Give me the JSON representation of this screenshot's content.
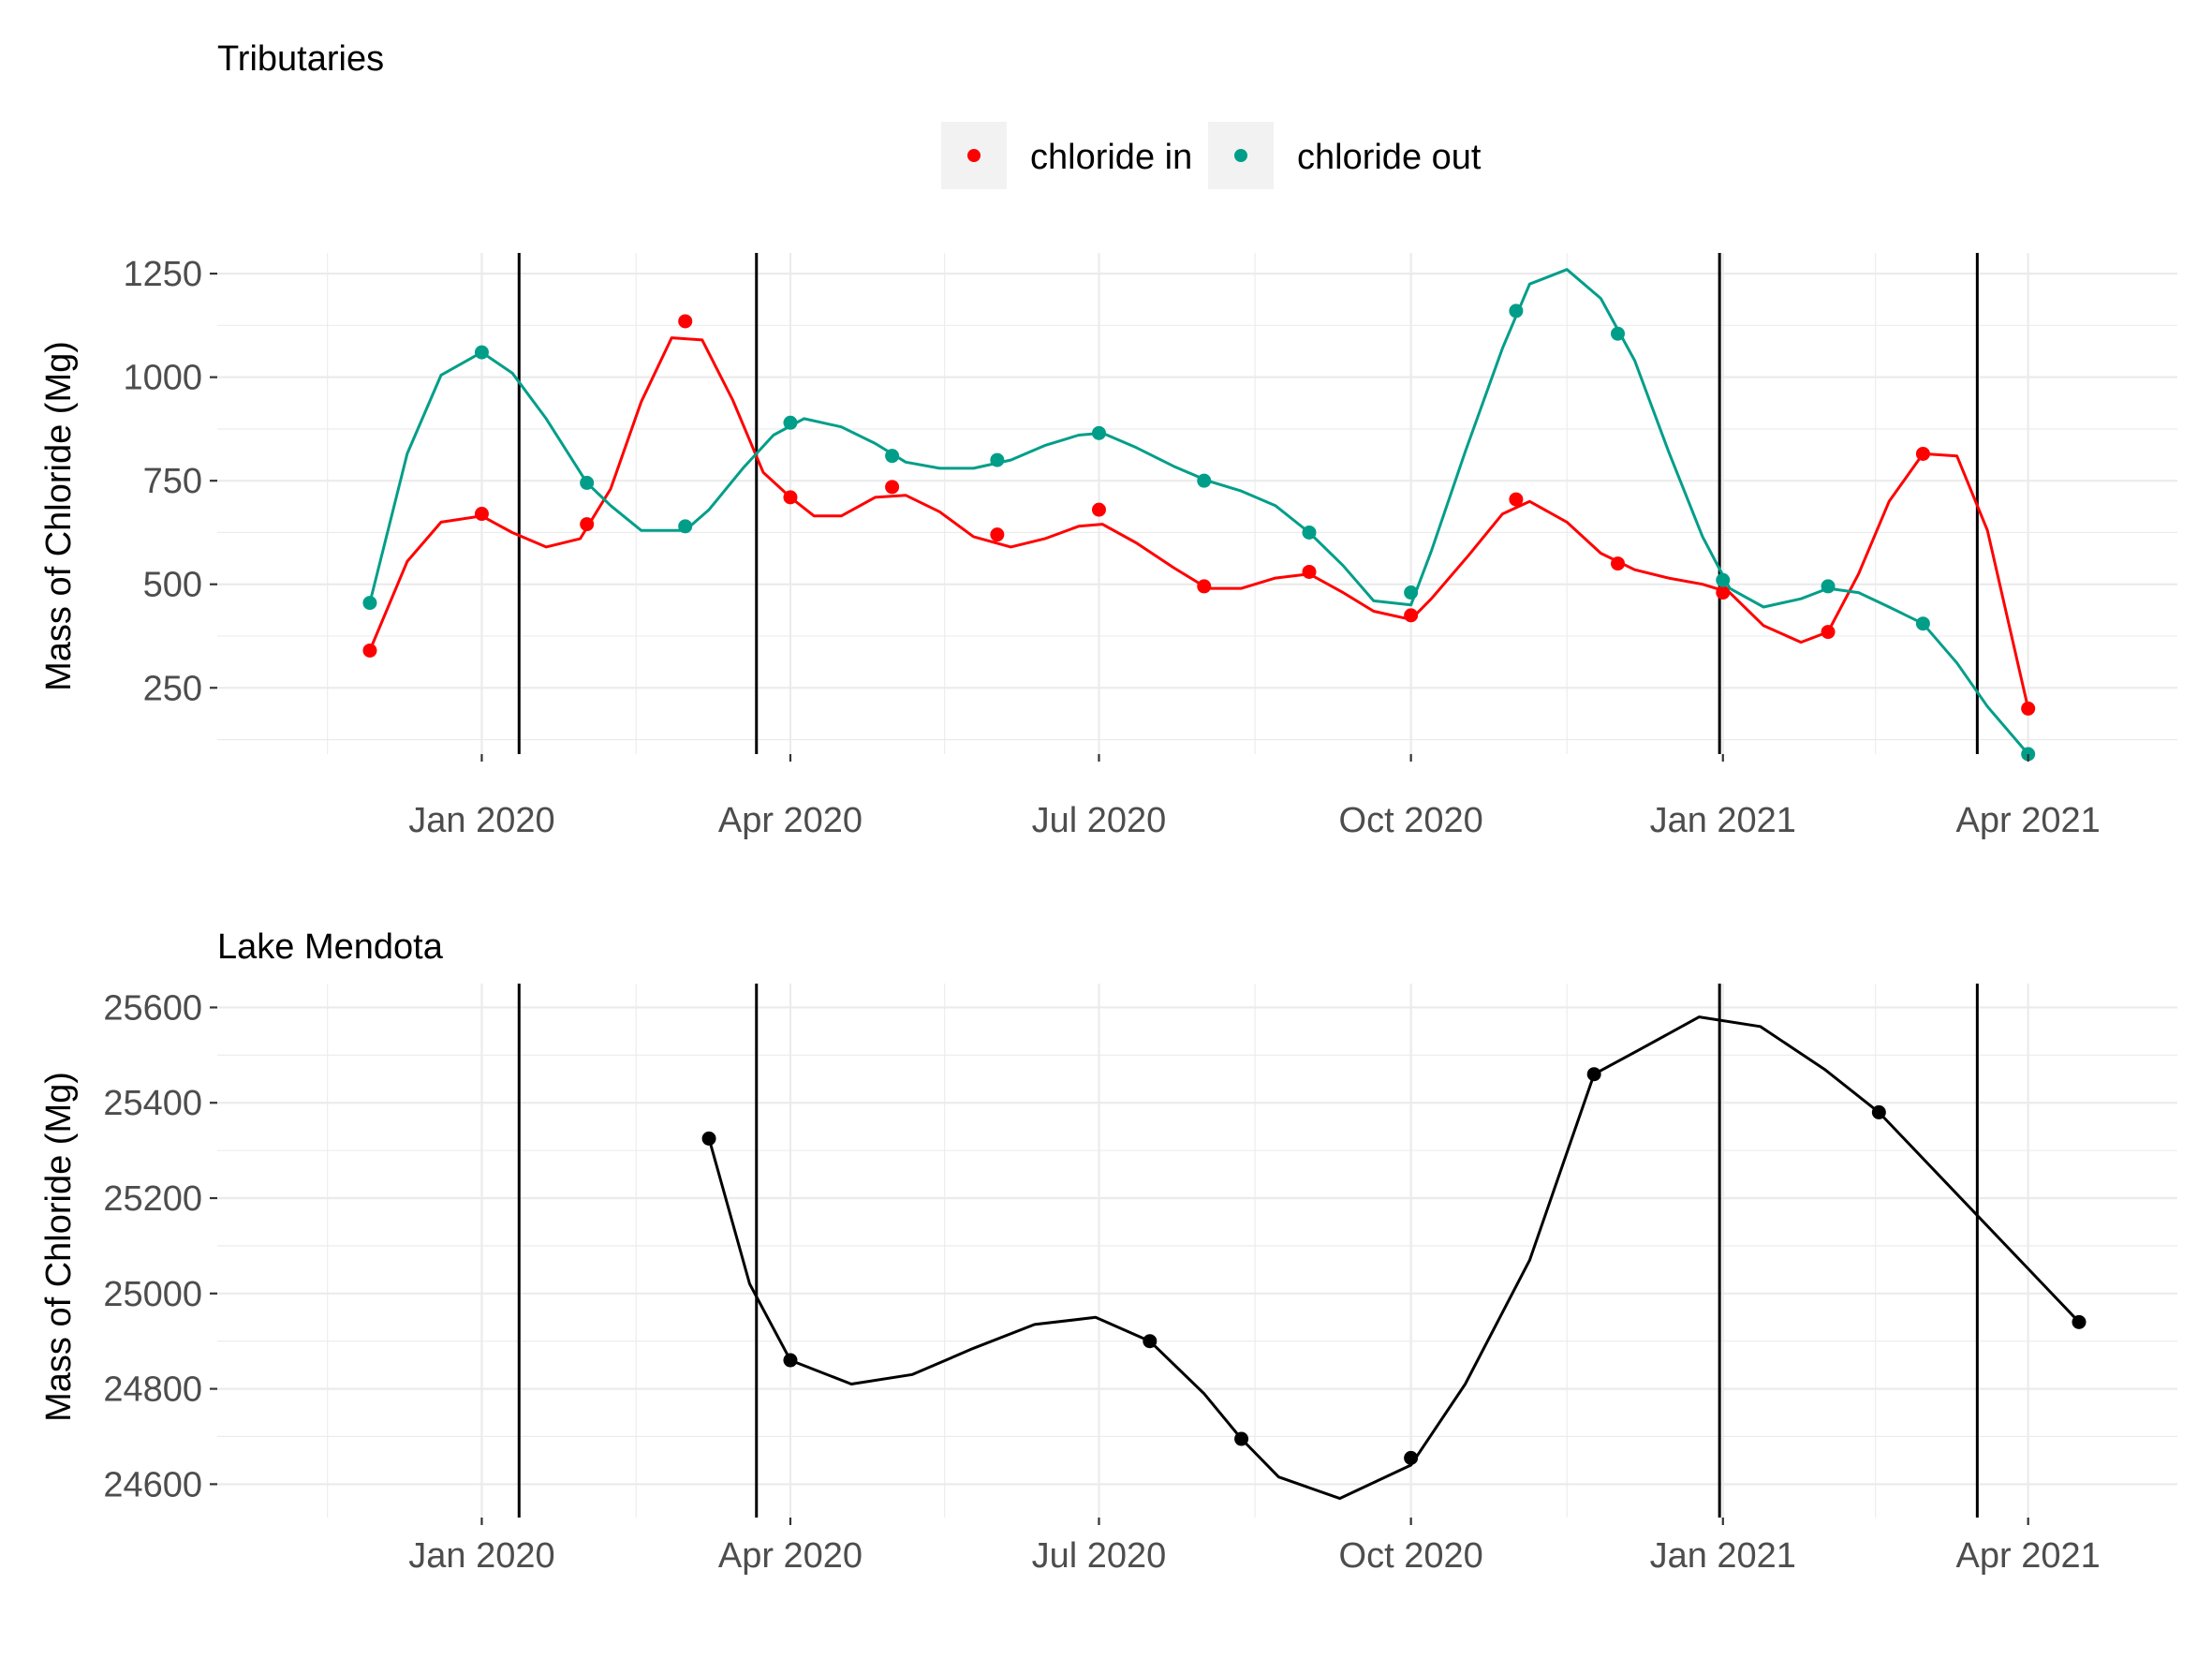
{
  "chart_data": [
    {
      "type": "line",
      "title": "Tributaries",
      "xlabel": "",
      "ylabel": "Mass of Chloride (Mg)",
      "xlim": [
        "2019-10-15",
        "2021-05-15"
      ],
      "ylim": [
        90,
        1300
      ],
      "x_ticks": [
        {
          "date": "2020-01-01",
          "label": "Jan 2020"
        },
        {
          "date": "2020-04-01",
          "label": "Apr 2020"
        },
        {
          "date": "2020-07-01",
          "label": "Jul 2020"
        },
        {
          "date": "2020-10-01",
          "label": "Oct 2020"
        },
        {
          "date": "2021-01-01",
          "label": "Jan 2021"
        },
        {
          "date": "2021-04-01",
          "label": "Apr 2021"
        }
      ],
      "y_ticks": [
        {
          "value": 250,
          "label": "250"
        },
        {
          "value": 500,
          "label": "500"
        },
        {
          "value": 750,
          "label": "750"
        },
        {
          "value": 1000,
          "label": "1000"
        },
        {
          "value": 1250,
          "label": "1250"
        }
      ],
      "vertical_lines": [
        "2020-01-12",
        "2020-03-22",
        "2020-12-31",
        "2021-03-17"
      ],
      "grid": true,
      "legend": {
        "position": "top",
        "entries": [
          "chloride in",
          "chloride out"
        ]
      },
      "series": [
        {
          "name": "chloride in",
          "color": "#ff0000",
          "points": [
            [
              "2019-11-29",
              340
            ],
            [
              "2020-01-01",
              670
            ],
            [
              "2020-02-01",
              645
            ],
            [
              "2020-03-01",
              1135
            ],
            [
              "2020-04-01",
              710
            ],
            [
              "2020-05-01",
              735
            ],
            [
              "2020-06-01",
              620
            ],
            [
              "2020-07-01",
              680
            ],
            [
              "2020-08-01",
              495
            ],
            [
              "2020-09-01",
              530
            ],
            [
              "2020-10-01",
              425
            ],
            [
              "2020-11-01",
              705
            ],
            [
              "2020-12-01",
              550
            ],
            [
              "2021-01-01",
              480
            ],
            [
              "2021-02-01",
              385
            ],
            [
              "2021-03-01",
              815
            ],
            [
              "2021-04-01",
              200
            ]
          ],
          "curve": [
            [
              "2019-11-29",
              340
            ],
            [
              "2019-12-10",
              555
            ],
            [
              "2019-12-20",
              650
            ],
            [
              "2020-01-01",
              665
            ],
            [
              "2020-01-10",
              625
            ],
            [
              "2020-01-20",
              590
            ],
            [
              "2020-01-30",
              610
            ],
            [
              "2020-02-08",
              730
            ],
            [
              "2020-02-17",
              940
            ],
            [
              "2020-02-26",
              1095
            ],
            [
              "2020-03-06",
              1090
            ],
            [
              "2020-03-15",
              945
            ],
            [
              "2020-03-24",
              770
            ],
            [
              "2020-04-01",
              710
            ],
            [
              "2020-04-08",
              665
            ],
            [
              "2020-04-16",
              665
            ],
            [
              "2020-04-26",
              710
            ],
            [
              "2020-05-05",
              715
            ],
            [
              "2020-05-15",
              675
            ],
            [
              "2020-05-25",
              615
            ],
            [
              "2020-06-05",
              590
            ],
            [
              "2020-06-15",
              610
            ],
            [
              "2020-06-25",
              640
            ],
            [
              "2020-07-02",
              645
            ],
            [
              "2020-07-12",
              600
            ],
            [
              "2020-07-23",
              540
            ],
            [
              "2020-08-02",
              490
            ],
            [
              "2020-08-12",
              490
            ],
            [
              "2020-08-22",
              515
            ],
            [
              "2020-09-01",
              525
            ],
            [
              "2020-09-11",
              480
            ],
            [
              "2020-09-20",
              435
            ],
            [
              "2020-10-01",
              415
            ],
            [
              "2020-10-07",
              465
            ],
            [
              "2020-10-18",
              570
            ],
            [
              "2020-10-28",
              670
            ],
            [
              "2020-11-05",
              700
            ],
            [
              "2020-11-16",
              650
            ],
            [
              "2020-11-26",
              575
            ],
            [
              "2020-12-06",
              535
            ],
            [
              "2020-12-16",
              515
            ],
            [
              "2020-12-26",
              500
            ],
            [
              "2021-01-03",
              480
            ],
            [
              "2021-01-13",
              400
            ],
            [
              "2021-01-24",
              360
            ],
            [
              "2021-02-01",
              385
            ],
            [
              "2021-02-10",
              525
            ],
            [
              "2021-02-19",
              700
            ],
            [
              "2021-03-01",
              815
            ],
            [
              "2021-03-11",
              810
            ],
            [
              "2021-03-20",
              630
            ],
            [
              "2021-04-01",
              200
            ]
          ]
        },
        {
          "name": "chloride out",
          "color": "#009e89",
          "points": [
            [
              "2019-11-29",
              455
            ],
            [
              "2020-01-01",
              1060
            ],
            [
              "2020-02-01",
              745
            ],
            [
              "2020-03-01",
              640
            ],
            [
              "2020-04-01",
              890
            ],
            [
              "2020-05-01",
              810
            ],
            [
              "2020-06-01",
              800
            ],
            [
              "2020-07-01",
              865
            ],
            [
              "2020-08-01",
              750
            ],
            [
              "2020-09-01",
              625
            ],
            [
              "2020-10-01",
              480
            ],
            [
              "2020-11-01",
              1160
            ],
            [
              "2020-12-01",
              1105
            ],
            [
              "2021-01-01",
              510
            ],
            [
              "2021-02-01",
              495
            ],
            [
              "2021-03-01",
              405
            ],
            [
              "2021-04-01",
              90
            ]
          ],
          "curve": [
            [
              "2019-11-29",
              455
            ],
            [
              "2019-12-10",
              815
            ],
            [
              "2019-12-20",
              1005
            ],
            [
              "2020-01-01",
              1060
            ],
            [
              "2020-01-10",
              1010
            ],
            [
              "2020-01-20",
              900
            ],
            [
              "2020-02-01",
              745
            ],
            [
              "2020-02-08",
              690
            ],
            [
              "2020-02-17",
              630
            ],
            [
              "2020-03-01",
              630
            ],
            [
              "2020-03-08",
              680
            ],
            [
              "2020-03-18",
              780
            ],
            [
              "2020-03-27",
              860
            ],
            [
              "2020-04-05",
              900
            ],
            [
              "2020-04-16",
              880
            ],
            [
              "2020-04-26",
              840
            ],
            [
              "2020-05-05",
              795
            ],
            [
              "2020-05-15",
              780
            ],
            [
              "2020-05-25",
              780
            ],
            [
              "2020-06-05",
              800
            ],
            [
              "2020-06-15",
              835
            ],
            [
              "2020-06-25",
              860
            ],
            [
              "2020-07-02",
              865
            ],
            [
              "2020-07-12",
              830
            ],
            [
              "2020-07-23",
              785
            ],
            [
              "2020-08-02",
              750
            ],
            [
              "2020-08-12",
              725
            ],
            [
              "2020-08-22",
              690
            ],
            [
              "2020-09-01",
              625
            ],
            [
              "2020-09-11",
              545
            ],
            [
              "2020-09-20",
              460
            ],
            [
              "2020-10-01",
              450
            ],
            [
              "2020-10-07",
              580
            ],
            [
              "2020-10-17",
              820
            ],
            [
              "2020-10-28",
              1070
            ],
            [
              "2020-11-05",
              1225
            ],
            [
              "2020-11-16",
              1260
            ],
            [
              "2020-11-26",
              1190
            ],
            [
              "2020-12-06",
              1040
            ],
            [
              "2020-12-16",
              820
            ],
            [
              "2020-12-26",
              615
            ],
            [
              "2021-01-03",
              490
            ],
            [
              "2021-01-13",
              445
            ],
            [
              "2021-01-24",
              465
            ],
            [
              "2021-02-01",
              490
            ],
            [
              "2021-02-10",
              480
            ],
            [
              "2021-02-19",
              445
            ],
            [
              "2021-03-01",
              405
            ],
            [
              "2021-03-11",
              310
            ],
            [
              "2021-03-20",
              205
            ],
            [
              "2021-04-01",
              90
            ]
          ]
        }
      ]
    },
    {
      "type": "line",
      "title": "Lake Mendota",
      "xlabel": "",
      "ylabel": "Mass of Chloride (Mg)",
      "xlim": [
        "2019-10-15",
        "2021-05-15"
      ],
      "ylim": [
        24530,
        25650
      ],
      "x_ticks": [
        {
          "date": "2020-01-01",
          "label": "Jan 2020"
        },
        {
          "date": "2020-04-01",
          "label": "Apr 2020"
        },
        {
          "date": "2020-07-01",
          "label": "Jul 2020"
        },
        {
          "date": "2020-10-01",
          "label": "Oct 2020"
        },
        {
          "date": "2021-01-01",
          "label": "Jan 2021"
        },
        {
          "date": "2021-04-01",
          "label": "Apr 2021"
        }
      ],
      "y_ticks": [
        {
          "value": 24600,
          "label": "24600"
        },
        {
          "value": 24800,
          "label": "24800"
        },
        {
          "value": 25000,
          "label": "25000"
        },
        {
          "value": 25200,
          "label": "25200"
        },
        {
          "value": 25400,
          "label": "25400"
        },
        {
          "value": 25600,
          "label": "25600"
        }
      ],
      "vertical_lines": [
        "2020-01-12",
        "2020-03-22",
        "2020-12-31",
        "2021-03-17"
      ],
      "grid": true,
      "series": [
        {
          "color": "#000000",
          "points": [
            [
              "2020-03-08",
              25325
            ],
            [
              "2020-04-01",
              24860
            ],
            [
              "2020-07-16",
              24900
            ],
            [
              "2020-08-12",
              24695
            ],
            [
              "2020-10-01",
              24655
            ],
            [
              "2020-11-24",
              25460
            ],
            [
              "2021-02-16",
              25380
            ],
            [
              "2021-04-16",
              24940
            ]
          ],
          "curve": [
            [
              "2020-03-08",
              25325
            ],
            [
              "2020-03-20",
              25020
            ],
            [
              "2020-04-01",
              24860
            ],
            [
              "2020-04-19",
              24810
            ],
            [
              "2020-05-07",
              24830
            ],
            [
              "2020-05-25",
              24885
            ],
            [
              "2020-06-12",
              24935
            ],
            [
              "2020-06-30",
              24950
            ],
            [
              "2020-07-16",
              24900
            ],
            [
              "2020-08-01",
              24790
            ],
            [
              "2020-08-12",
              24695
            ],
            [
              "2020-08-23",
              24615
            ],
            [
              "2020-09-10",
              24570
            ],
            [
              "2020-10-01",
              24640
            ],
            [
              "2020-10-17",
              24810
            ],
            [
              "2020-11-05",
              25070
            ],
            [
              "2020-11-24",
              25460
            ],
            [
              "2020-12-07",
              25510
            ],
            [
              "2020-12-25",
              25580
            ],
            [
              "2021-01-12",
              25560
            ],
            [
              "2021-01-31",
              25470
            ],
            [
              "2021-02-16",
              25380
            ],
            [
              "2021-04-16",
              24940
            ]
          ]
        }
      ]
    }
  ]
}
